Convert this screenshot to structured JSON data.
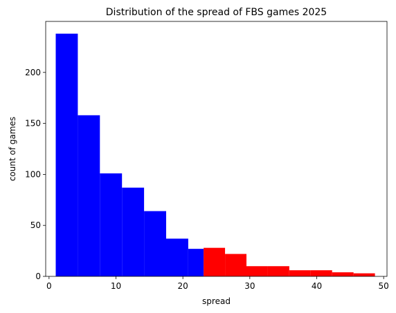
{
  "chart_data": {
    "type": "bar",
    "title": "Distribution of the spread of FBS games 2025",
    "xlabel": "spread",
    "ylabel": "count of games",
    "xlim": [
      -0.5,
      50.5
    ],
    "ylim": [
      0,
      250
    ],
    "xticks": [
      0,
      10,
      20,
      30,
      40,
      50
    ],
    "yticks": [
      0,
      50,
      100,
      150,
      200
    ],
    "grid": false,
    "series": [
      {
        "color": "#0000ff",
        "bins": [
          {
            "x0": 1.0,
            "x1": 4.3,
            "count": 238
          },
          {
            "x0": 4.3,
            "x1": 7.6,
            "count": 158
          },
          {
            "x0": 7.6,
            "x1": 10.9,
            "count": 101
          },
          {
            "x0": 10.9,
            "x1": 14.2,
            "count": 87
          },
          {
            "x0": 14.2,
            "x1": 17.5,
            "count": 64
          },
          {
            "x0": 17.5,
            "x1": 20.8,
            "count": 37
          },
          {
            "x0": 20.8,
            "x1": 23.1,
            "count": 27
          }
        ]
      },
      {
        "color": "#ff0000",
        "bins": [
          {
            "x0": 23.1,
            "x1": 26.3,
            "count": 28
          },
          {
            "x0": 26.3,
            "x1": 29.5,
            "count": 22
          },
          {
            "x0": 29.5,
            "x1": 32.7,
            "count": 10
          },
          {
            "x0": 32.7,
            "x1": 35.9,
            "count": 10
          },
          {
            "x0": 35.9,
            "x1": 39.1,
            "count": 6
          },
          {
            "x0": 39.1,
            "x1": 42.3,
            "count": 6
          },
          {
            "x0": 42.3,
            "x1": 45.5,
            "count": 4
          },
          {
            "x0": 45.5,
            "x1": 48.7,
            "count": 3
          }
        ]
      }
    ]
  }
}
